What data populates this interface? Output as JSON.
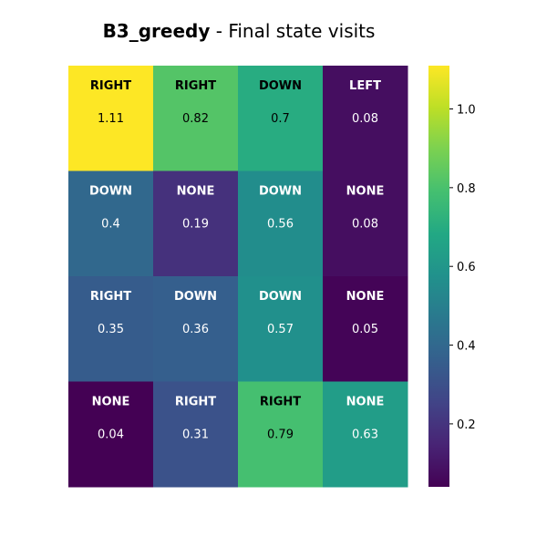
{
  "chart_data": {
    "type": "heatmap",
    "title_bold": "B3_greedy",
    "title_rest": " - Final state visits",
    "rows": 4,
    "cols": 4,
    "cells": [
      [
        {
          "action": "RIGHT",
          "value": 1.11
        },
        {
          "action": "RIGHT",
          "value": 0.82
        },
        {
          "action": "DOWN",
          "value": 0.7
        },
        {
          "action": "LEFT",
          "value": 0.08
        }
      ],
      [
        {
          "action": "DOWN",
          "value": 0.4
        },
        {
          "action": "NONE",
          "value": 0.19
        },
        {
          "action": "DOWN",
          "value": 0.56
        },
        {
          "action": "NONE",
          "value": 0.08
        }
      ],
      [
        {
          "action": "RIGHT",
          "value": 0.35
        },
        {
          "action": "DOWN",
          "value": 0.36
        },
        {
          "action": "DOWN",
          "value": 0.57
        },
        {
          "action": "NONE",
          "value": 0.05
        }
      ],
      [
        {
          "action": "NONE",
          "value": 0.04
        },
        {
          "action": "RIGHT",
          "value": 0.31
        },
        {
          "action": "RIGHT",
          "value": 0.79
        },
        {
          "action": "NONE",
          "value": 0.63
        }
      ]
    ],
    "colormap": "viridis",
    "vmin": 0.04,
    "vmax": 1.11,
    "colorbar_ticks": [
      0.2,
      0.4,
      0.6,
      0.8,
      1.0
    ],
    "colorbar_tick_labels": [
      "0.2",
      "0.4",
      "0.6",
      "0.8",
      "1.0"
    ]
  }
}
